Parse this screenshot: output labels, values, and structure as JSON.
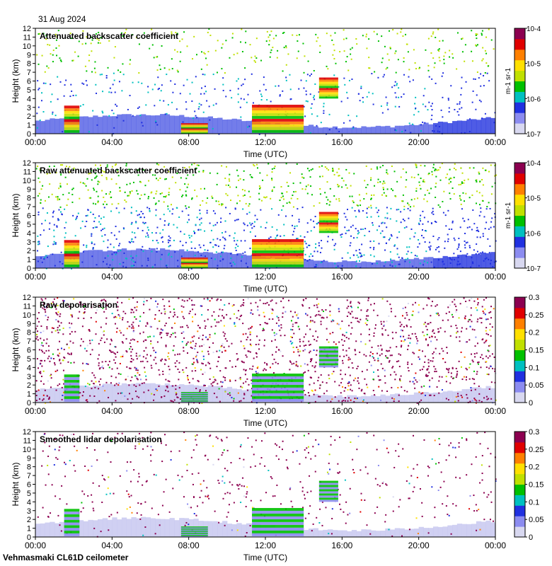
{
  "date_label": "31 Aug 2024",
  "footer": "Vehmasmaki CL61D ceilometer",
  "colors": {
    "background_fill": "#ffffff",
    "low_fill": "#d4d4ec",
    "scale": [
      "#d8d8f0",
      "#8c8cf0",
      "#2030e0",
      "#00c0c0",
      "#00c000",
      "#c0e000",
      "#ffe000",
      "#ff8000",
      "#e00000",
      "#8c0050"
    ]
  },
  "chart_data": [
    {
      "type": "heatmap",
      "title": "Attenuated backscatter coefficient",
      "xlabel": "Time (UTC)",
      "ylabel": "Height (km)",
      "xticks": [
        "00:00",
        "04:00",
        "08:00",
        "12:00",
        "16:00",
        "20:00",
        "00:00"
      ],
      "xlim_hours": [
        0,
        24
      ],
      "ylim": [
        0,
        12
      ],
      "yticks": [
        "0",
        "1",
        "2",
        "3",
        "4",
        "5",
        "6",
        "7",
        "8",
        "9",
        "10",
        "11",
        "12"
      ],
      "colorbar": {
        "scale": "log",
        "range": [
          1e-07,
          0.0001
        ],
        "labels": [
          "10-7",
          "10-6",
          "10-5",
          "10-4"
        ],
        "unit": "m-1 sr-1"
      }
    },
    {
      "type": "heatmap",
      "title": "Raw attenuated backscatter coefficient",
      "xlabel": "Time (UTC)",
      "ylabel": "Height (km)",
      "xticks": [
        "00:00",
        "04:00",
        "08:00",
        "12:00",
        "16:00",
        "20:00",
        "00:00"
      ],
      "xlim_hours": [
        0,
        24
      ],
      "ylim": [
        0,
        12
      ],
      "yticks": [
        "0",
        "1",
        "2",
        "3",
        "4",
        "5",
        "6",
        "7",
        "8",
        "9",
        "10",
        "11",
        "12"
      ],
      "colorbar": {
        "scale": "log",
        "range": [
          1e-07,
          0.0001
        ],
        "labels": [
          "10-7",
          "10-6",
          "10-5",
          "10-4"
        ],
        "unit": "m-1 sr-1"
      }
    },
    {
      "type": "heatmap",
      "title": "Raw depolarisation",
      "xlabel": "Time (UTC)",
      "ylabel": "Height (km)",
      "xticks": [
        "00:00",
        "04:00",
        "08:00",
        "12:00",
        "16:00",
        "20:00",
        "00:00"
      ],
      "xlim_hours": [
        0,
        24
      ],
      "ylim": [
        0,
        12
      ],
      "yticks": [
        "0",
        "1",
        "2",
        "3",
        "4",
        "5",
        "6",
        "7",
        "8",
        "9",
        "10",
        "11",
        "12"
      ],
      "colorbar": {
        "scale": "linear",
        "range": [
          0,
          0.3
        ],
        "labels": [
          "0",
          "0.05",
          "0.1",
          "0.15",
          "0.2",
          "0.25",
          "0.3"
        ],
        "unit": ""
      }
    },
    {
      "type": "heatmap",
      "title": "Smoothed lidar depolarisation",
      "xlabel": "Time (UTC)",
      "ylabel": "Height (km)",
      "xticks": [
        "00:00",
        "04:00",
        "08:00",
        "12:00",
        "16:00",
        "20:00",
        "00:00"
      ],
      "xlim_hours": [
        0,
        24
      ],
      "ylim": [
        0,
        12
      ],
      "yticks": [
        "0",
        "1",
        "2",
        "3",
        "4",
        "5",
        "6",
        "7",
        "8",
        "9",
        "10",
        "11",
        "12"
      ],
      "colorbar": {
        "scale": "linear",
        "range": [
          0,
          0.3
        ],
        "labels": [
          "0",
          "0.05",
          "0.1",
          "0.15",
          "0.2",
          "0.25",
          "0.3"
        ],
        "unit": ""
      }
    }
  ]
}
